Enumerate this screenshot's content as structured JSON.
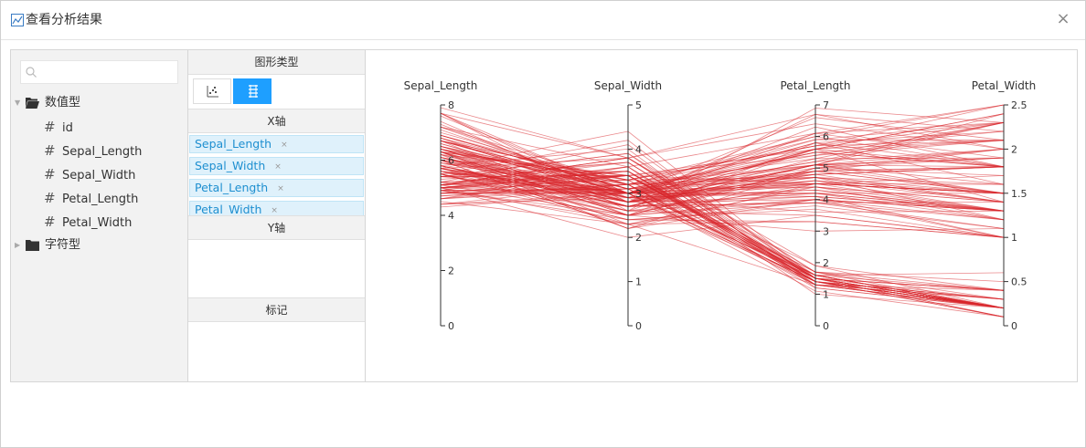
{
  "window": {
    "title": "查看分析结果",
    "close_glyph": "×"
  },
  "search": {
    "placeholder": "",
    "value": ""
  },
  "tree": {
    "numeric_group": "数值型",
    "numeric_fields": [
      "id",
      "Sepal_Length",
      "Sepal_Width",
      "Petal_Length",
      "Petal_Width"
    ],
    "string_group": "字符型",
    "hash_glyph": "#"
  },
  "config": {
    "chart_type_header": "图形类型",
    "chart_types": [
      {
        "icon": "scatter-chart-icon",
        "active": false
      },
      {
        "icon": "parallel-coordinates-icon",
        "active": true
      }
    ],
    "x_axis_header": "X轴",
    "x_axis_fields": [
      "Sepal_Length",
      "Sepal_Width",
      "Petal_Length",
      "Petal_Width"
    ],
    "remove_glyph": "×",
    "y_axis_header": "Y轴",
    "marks_header": "标记"
  },
  "colors": {
    "accent": "#1e9fff",
    "line": "#d9262b",
    "chip_bg": "#dff1fb",
    "chip_text": "#1e8fd0"
  },
  "chart_data": {
    "type": "parallel",
    "axes": [
      {
        "name": "Sepal_Length",
        "range": [
          0,
          8
        ],
        "ticks": [
          0,
          2,
          4,
          6,
          8
        ]
      },
      {
        "name": "Sepal_Width",
        "range": [
          0,
          5
        ],
        "ticks": [
          0,
          1,
          2,
          3,
          4,
          5
        ]
      },
      {
        "name": "Petal_Length",
        "range": [
          0,
          7
        ],
        "ticks": [
          0,
          1,
          2,
          3,
          4,
          5,
          6,
          7
        ]
      },
      {
        "name": "Petal_Width",
        "range": [
          0,
          2.5
        ],
        "ticks": [
          0,
          0.5,
          1,
          1.5,
          2,
          2.5
        ]
      }
    ],
    "rows": [
      [
        5.1,
        3.5,
        1.4,
        0.2
      ],
      [
        4.9,
        3.0,
        1.4,
        0.2
      ],
      [
        4.7,
        3.2,
        1.3,
        0.2
      ],
      [
        4.6,
        3.1,
        1.5,
        0.2
      ],
      [
        5.0,
        3.6,
        1.4,
        0.2
      ],
      [
        5.4,
        3.9,
        1.7,
        0.4
      ],
      [
        4.6,
        3.4,
        1.4,
        0.3
      ],
      [
        5.0,
        3.4,
        1.5,
        0.2
      ],
      [
        4.4,
        2.9,
        1.4,
        0.2
      ],
      [
        4.9,
        3.1,
        1.5,
        0.1
      ],
      [
        5.4,
        3.7,
        1.5,
        0.2
      ],
      [
        4.8,
        3.4,
        1.6,
        0.2
      ],
      [
        4.8,
        3.0,
        1.4,
        0.1
      ],
      [
        4.3,
        3.0,
        1.1,
        0.1
      ],
      [
        5.8,
        4.0,
        1.2,
        0.2
      ],
      [
        5.7,
        4.4,
        1.5,
        0.4
      ],
      [
        5.4,
        3.9,
        1.3,
        0.4
      ],
      [
        5.1,
        3.5,
        1.4,
        0.3
      ],
      [
        5.7,
        3.8,
        1.7,
        0.3
      ],
      [
        5.1,
        3.8,
        1.5,
        0.3
      ],
      [
        5.4,
        3.4,
        1.7,
        0.2
      ],
      [
        5.1,
        3.7,
        1.5,
        0.4
      ],
      [
        4.6,
        3.6,
        1.0,
        0.2
      ],
      [
        5.1,
        3.3,
        1.7,
        0.5
      ],
      [
        4.8,
        3.4,
        1.9,
        0.2
      ],
      [
        5.0,
        3.0,
        1.6,
        0.2
      ],
      [
        5.0,
        3.4,
        1.6,
        0.4
      ],
      [
        5.2,
        3.5,
        1.5,
        0.2
      ],
      [
        5.2,
        3.4,
        1.4,
        0.2
      ],
      [
        4.7,
        3.2,
        1.6,
        0.2
      ],
      [
        4.8,
        3.1,
        1.6,
        0.2
      ],
      [
        5.4,
        3.4,
        1.5,
        0.4
      ],
      [
        5.2,
        4.1,
        1.5,
        0.1
      ],
      [
        5.5,
        4.2,
        1.4,
        0.2
      ],
      [
        4.9,
        3.1,
        1.5,
        0.2
      ],
      [
        5.0,
        3.2,
        1.2,
        0.2
      ],
      [
        5.5,
        3.5,
        1.3,
        0.2
      ],
      [
        4.9,
        3.6,
        1.4,
        0.1
      ],
      [
        4.4,
        3.0,
        1.3,
        0.2
      ],
      [
        5.1,
        3.4,
        1.5,
        0.2
      ],
      [
        5.0,
        3.5,
        1.3,
        0.3
      ],
      [
        4.5,
        2.3,
        1.3,
        0.3
      ],
      [
        4.4,
        3.2,
        1.3,
        0.2
      ],
      [
        5.0,
        3.5,
        1.6,
        0.6
      ],
      [
        5.1,
        3.8,
        1.9,
        0.4
      ],
      [
        4.8,
        3.0,
        1.4,
        0.3
      ],
      [
        5.1,
        3.8,
        1.6,
        0.2
      ],
      [
        4.6,
        3.2,
        1.4,
        0.2
      ],
      [
        5.3,
        3.7,
        1.5,
        0.2
      ],
      [
        5.0,
        3.3,
        1.4,
        0.2
      ],
      [
        7.0,
        3.2,
        4.7,
        1.4
      ],
      [
        6.4,
        3.2,
        4.5,
        1.5
      ],
      [
        6.9,
        3.1,
        4.9,
        1.5
      ],
      [
        5.5,
        2.3,
        4.0,
        1.3
      ],
      [
        6.5,
        2.8,
        4.6,
        1.5
      ],
      [
        5.7,
        2.8,
        4.5,
        1.3
      ],
      [
        6.3,
        3.3,
        4.7,
        1.6
      ],
      [
        4.9,
        2.4,
        3.3,
        1.0
      ],
      [
        6.6,
        2.9,
        4.6,
        1.3
      ],
      [
        5.2,
        2.7,
        3.9,
        1.4
      ],
      [
        5.0,
        2.0,
        3.5,
        1.0
      ],
      [
        5.9,
        3.0,
        4.2,
        1.5
      ],
      [
        6.0,
        2.2,
        4.0,
        1.0
      ],
      [
        6.1,
        2.9,
        4.7,
        1.4
      ],
      [
        5.6,
        2.9,
        3.6,
        1.3
      ],
      [
        6.7,
        3.1,
        4.4,
        1.4
      ],
      [
        5.6,
        3.0,
        4.5,
        1.5
      ],
      [
        5.8,
        2.7,
        4.1,
        1.0
      ],
      [
        6.2,
        2.2,
        4.5,
        1.5
      ],
      [
        5.6,
        2.5,
        3.9,
        1.1
      ],
      [
        5.9,
        3.2,
        4.8,
        1.8
      ],
      [
        6.1,
        2.8,
        4.0,
        1.3
      ],
      [
        6.3,
        2.5,
        4.9,
        1.5
      ],
      [
        6.1,
        2.8,
        4.7,
        1.2
      ],
      [
        6.4,
        2.9,
        4.3,
        1.3
      ],
      [
        6.6,
        3.0,
        4.4,
        1.4
      ],
      [
        6.8,
        2.8,
        4.8,
        1.4
      ],
      [
        6.7,
        3.0,
        5.0,
        1.7
      ],
      [
        6.0,
        2.9,
        4.5,
        1.5
      ],
      [
        5.7,
        2.6,
        3.5,
        1.0
      ],
      [
        5.5,
        2.4,
        3.8,
        1.1
      ],
      [
        5.5,
        2.4,
        3.7,
        1.0
      ],
      [
        5.8,
        2.7,
        3.9,
        1.2
      ],
      [
        6.0,
        2.7,
        5.1,
        1.6
      ],
      [
        5.4,
        3.0,
        4.5,
        1.5
      ],
      [
        6.0,
        3.4,
        4.5,
        1.6
      ],
      [
        6.7,
        3.1,
        4.7,
        1.5
      ],
      [
        6.3,
        2.3,
        4.4,
        1.3
      ],
      [
        5.6,
        3.0,
        4.1,
        1.3
      ],
      [
        5.5,
        2.5,
        4.0,
        1.3
      ],
      [
        5.5,
        2.6,
        4.4,
        1.2
      ],
      [
        6.1,
        3.0,
        4.6,
        1.4
      ],
      [
        5.8,
        2.6,
        4.0,
        1.2
      ],
      [
        5.0,
        2.3,
        3.3,
        1.0
      ],
      [
        5.6,
        2.7,
        4.2,
        1.3
      ],
      [
        5.7,
        3.0,
        4.2,
        1.2
      ],
      [
        5.7,
        2.9,
        4.2,
        1.3
      ],
      [
        6.2,
        2.9,
        4.3,
        1.3
      ],
      [
        5.1,
        2.5,
        3.0,
        1.1
      ],
      [
        5.7,
        2.8,
        4.1,
        1.3
      ],
      [
        6.3,
        3.3,
        6.0,
        2.5
      ],
      [
        5.8,
        2.7,
        5.1,
        1.9
      ],
      [
        7.1,
        3.0,
        5.9,
        2.1
      ],
      [
        6.3,
        2.9,
        5.6,
        1.8
      ],
      [
        6.5,
        3.0,
        5.8,
        2.2
      ],
      [
        7.6,
        3.0,
        6.6,
        2.1
      ],
      [
        4.9,
        2.5,
        4.5,
        1.7
      ],
      [
        7.3,
        2.9,
        6.3,
        1.8
      ],
      [
        6.7,
        2.5,
        5.8,
        1.8
      ],
      [
        7.2,
        3.6,
        6.1,
        2.5
      ],
      [
        6.5,
        3.2,
        5.1,
        2.0
      ],
      [
        6.4,
        2.7,
        5.3,
        1.9
      ],
      [
        6.8,
        3.0,
        5.5,
        2.1
      ],
      [
        5.7,
        2.5,
        5.0,
        2.0
      ],
      [
        5.8,
        2.8,
        5.1,
        2.4
      ],
      [
        6.4,
        3.2,
        5.3,
        2.3
      ],
      [
        6.5,
        3.0,
        5.5,
        1.8
      ],
      [
        7.7,
        3.8,
        6.7,
        2.2
      ],
      [
        7.7,
        2.6,
        6.9,
        2.3
      ],
      [
        6.0,
        2.2,
        5.0,
        1.5
      ],
      [
        6.9,
        3.2,
        5.7,
        2.3
      ],
      [
        5.6,
        2.8,
        4.9,
        2.0
      ],
      [
        7.7,
        2.8,
        6.7,
        2.0
      ],
      [
        6.3,
        2.7,
        4.9,
        1.8
      ],
      [
        6.7,
        3.3,
        5.7,
        2.1
      ],
      [
        7.2,
        3.2,
        6.0,
        1.8
      ],
      [
        6.2,
        2.8,
        4.8,
        1.8
      ],
      [
        6.1,
        3.0,
        4.9,
        1.8
      ],
      [
        6.4,
        2.8,
        5.6,
        2.1
      ],
      [
        7.2,
        3.0,
        5.8,
        1.6
      ],
      [
        7.4,
        2.8,
        6.1,
        1.9
      ],
      [
        7.9,
        3.8,
        6.4,
        2.0
      ],
      [
        6.4,
        2.8,
        5.6,
        2.2
      ],
      [
        6.3,
        2.8,
        5.1,
        1.5
      ],
      [
        6.1,
        2.6,
        5.6,
        1.4
      ],
      [
        7.7,
        3.0,
        6.1,
        2.3
      ],
      [
        6.3,
        3.4,
        5.6,
        2.4
      ],
      [
        6.4,
        3.1,
        5.5,
        1.8
      ],
      [
        6.0,
        3.0,
        4.8,
        1.8
      ],
      [
        6.9,
        3.1,
        5.4,
        2.1
      ],
      [
        6.7,
        3.1,
        5.6,
        2.4
      ],
      [
        6.9,
        3.1,
        5.1,
        2.3
      ],
      [
        5.8,
        2.7,
        5.1,
        1.9
      ],
      [
        6.8,
        3.2,
        5.9,
        2.3
      ],
      [
        6.7,
        3.3,
        5.7,
        2.5
      ],
      [
        6.7,
        3.0,
        5.2,
        2.3
      ],
      [
        6.3,
        2.5,
        5.0,
        1.9
      ],
      [
        6.5,
        3.0,
        5.2,
        2.0
      ],
      [
        6.2,
        3.4,
        5.4,
        2.3
      ],
      [
        5.9,
        3.0,
        5.1,
        1.8
      ]
    ]
  }
}
